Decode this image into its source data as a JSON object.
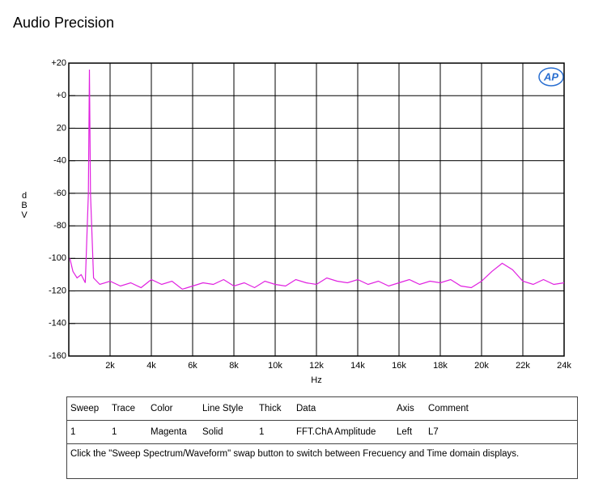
{
  "header": {
    "title": "Audio Precision"
  },
  "chart_data": {
    "type": "line",
    "y_label": "dBV",
    "x_label": "Hz",
    "logo": "AP",
    "color": "#e020e0",
    "grid": true,
    "xlim": [
      0,
      24000
    ],
    "xticks": [
      {
        "value": 2000,
        "label": "2k"
      },
      {
        "value": 4000,
        "label": "4k"
      },
      {
        "value": 6000,
        "label": "6k"
      },
      {
        "value": 8000,
        "label": "8k"
      },
      {
        "value": 10000,
        "label": "10k"
      },
      {
        "value": 12000,
        "label": "12k"
      },
      {
        "value": 14000,
        "label": "14k"
      },
      {
        "value": 16000,
        "label": "16k"
      },
      {
        "value": 18000,
        "label": "18k"
      },
      {
        "value": 20000,
        "label": "20k"
      },
      {
        "value": 22000,
        "label": "22k"
      },
      {
        "value": 24000,
        "label": "24k"
      }
    ],
    "ylim": [
      -160,
      20
    ],
    "yticks": [
      {
        "value": 20,
        "label": "+20"
      },
      {
        "value": 0,
        "label": "+0"
      },
      {
        "value": -20,
        "label": "20"
      },
      -40,
      -60,
      -80,
      -100,
      -120,
      -140,
      -160
    ],
    "x": [
      50,
      200,
      400,
      600,
      800,
      950,
      1000,
      1050,
      1200,
      1500,
      2000,
      2500,
      3000,
      3500,
      4000,
      4500,
      5000,
      5500,
      6000,
      6500,
      7000,
      7500,
      8000,
      8500,
      9000,
      9500,
      10000,
      10500,
      11000,
      11500,
      12000,
      12500,
      13000,
      13500,
      14000,
      14500,
      15000,
      15500,
      16000,
      16500,
      17000,
      17500,
      18000,
      18500,
      19000,
      19500,
      20000,
      20500,
      21000,
      21500,
      22000,
      22500,
      23000,
      23500,
      24000
    ],
    "values": [
      -100,
      -108,
      -112,
      -110,
      -115,
      -60,
      16,
      -60,
      -112,
      -116,
      -114,
      -117,
      -115,
      -118,
      -113,
      -116,
      -114,
      -119,
      -117,
      -115,
      -116,
      -113,
      -117,
      -115,
      -118,
      -114,
      -116,
      -117,
      -113,
      -115,
      -116,
      -112,
      -114,
      -115,
      -113,
      -116,
      -114,
      -117,
      -115,
      -113,
      -116,
      -114,
      -115,
      -113,
      -117,
      -118,
      -114,
      -108,
      -103,
      -107,
      -114,
      -116,
      -113,
      -116,
      -115
    ]
  },
  "legend_table": {
    "header": [
      "Sweep",
      "Trace",
      "Color",
      "Line Style",
      "Thick",
      "Data",
      "Axis",
      "Comment"
    ],
    "row": [
      "1",
      "1",
      "Magenta",
      "Solid",
      "1",
      "FFT.ChA Amplitude",
      "Left",
      "L7"
    ],
    "note": "Click the \"Sweep Spectrum/Waveform\" swap button to switch between Frecuency and Time domain displays."
  }
}
